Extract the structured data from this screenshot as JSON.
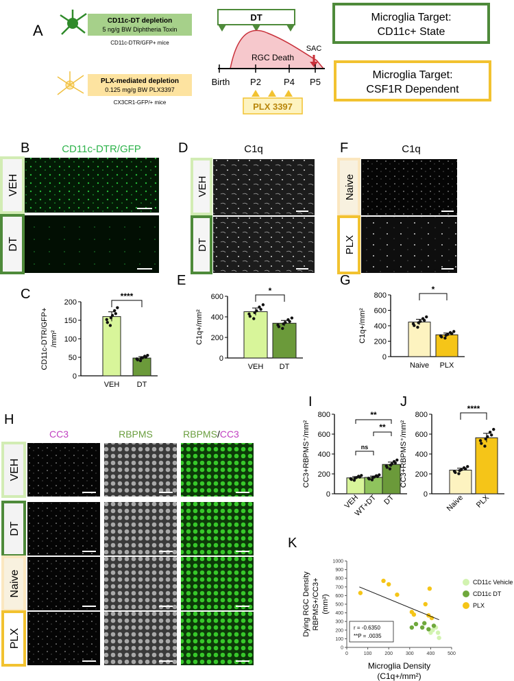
{
  "panels": {
    "A": "A",
    "B": "B",
    "C": "C",
    "D": "D",
    "E": "E",
    "F": "F",
    "G": "G",
    "H": "H",
    "I": "I",
    "J": "J",
    "K": "K"
  },
  "colors": {
    "light_green": "#d2ecb4",
    "mid_green": "#8fc35d",
    "dark_green": "#5a8a3a",
    "bar_light": "#d8f59a",
    "bar_dark": "#6b9a3a",
    "yellow": "#f5c518",
    "pale_yellow": "#fdf3c0",
    "magenta": "#c040c0",
    "label_green": "#2db34a",
    "rgc_fill": "#f6c8cc",
    "rgc_line": "#c8303a"
  },
  "panel_a": {
    "dt_box_title": "CD11c-DT depletion",
    "dt_box_sub": "5 ng/g BW Diphtheria Toxin",
    "dt_mice": "CD11c-DTR/GFP+ mice",
    "plx_box_title": "PLX-mediated depletion",
    "plx_box_sub": "0.125 mg/g BW PLX3397",
    "plx_mice": "CX3CR1-GFP/+ mice",
    "dt_label": "DT",
    "rgc_label": "RGC Death",
    "sac_label": "SAC",
    "timepoints": [
      "Birth",
      "P2",
      "P4",
      "P5"
    ],
    "plx_label": "PLX 3397",
    "target1_line1": "Microglia Target:",
    "target1_line2": "CD11c+ State",
    "target2_line1": "Microglia Target:",
    "target2_line2": "CSF1R Dependent"
  },
  "panel_b": {
    "title": "CD11c-DTR/GFP",
    "rows": [
      "VEH",
      "DT"
    ]
  },
  "panel_d": {
    "title": "C1q",
    "rows": [
      "VEH",
      "DT"
    ]
  },
  "panel_f": {
    "title": "C1q",
    "rows": [
      "Naive",
      "PLX"
    ]
  },
  "panel_h": {
    "col1": "CC3",
    "col2": "RBPMS",
    "col3a": "RBPMS",
    "col3b": "/",
    "col3c": "CC3",
    "rows": [
      "VEH",
      "DT",
      "Naive",
      "PLX"
    ]
  },
  "chart_data": [
    {
      "id": "C",
      "type": "bar",
      "categories": [
        "VEH",
        "DT"
      ],
      "values": [
        160,
        48
      ],
      "ylabel_line1": "CD11c-DTR/GFP+",
      "ylabel_line2": "/mm²",
      "ylim": [
        0,
        200
      ],
      "yticks": [
        "0",
        "50",
        "100",
        "150",
        "200"
      ],
      "significance": "****"
    },
    {
      "id": "E",
      "type": "bar",
      "categories": [
        "VEH",
        "DT"
      ],
      "values": [
        450,
        338
      ],
      "ylabel": "C1q+/mm²",
      "ylim": [
        0,
        600
      ],
      "yticks": [
        "0",
        "200",
        "400",
        "600"
      ],
      "significance": "*"
    },
    {
      "id": "G",
      "type": "bar",
      "categories": [
        "Naive",
        "PLX"
      ],
      "values": [
        448,
        283
      ],
      "ylabel": "C1q+/mm²",
      "ylim": [
        0,
        800
      ],
      "yticks": [
        "0",
        "200",
        "400",
        "600",
        "800"
      ],
      "significance": "*"
    },
    {
      "id": "I",
      "type": "bar",
      "categories": [
        "VEH",
        "WT+DT",
        "DT"
      ],
      "values": [
        160,
        165,
        295
      ],
      "ylabel": "CC3+RBPMS⁺/mm²",
      "ylim": [
        0,
        800
      ],
      "yticks": [
        "0",
        "200",
        "400",
        "600",
        "800"
      ],
      "significance": [
        {
          "pair": "VEH-WT+DT",
          "label": "ns"
        },
        {
          "pair": "WT+DT-DT",
          "label": "**"
        },
        {
          "pair": "VEH-DT",
          "label": "**"
        }
      ]
    },
    {
      "id": "J",
      "type": "bar",
      "categories": [
        "Naive",
        "PLX"
      ],
      "values": [
        238,
        563
      ],
      "ylabel": "CC3+RBPMS⁺/mm²",
      "ylim": [
        0,
        800
      ],
      "yticks": [
        "0",
        "200",
        "400",
        "600",
        "800"
      ],
      "significance": "****"
    },
    {
      "id": "K",
      "type": "scatter",
      "xlabel_line1": "Microglia Density",
      "xlabel_line2": "(C1q+/mm²)",
      "ylabel_line1": "Dying RGC Density",
      "ylabel_line2": "RBPMS+/CC3+",
      "ylabel_line3": "(mm²)",
      "xlim": [
        0,
        500
      ],
      "ylim": [
        0,
        1000
      ],
      "xticks": [
        "0",
        "100",
        "200",
        "300",
        "400",
        "500"
      ],
      "yticks": [
        "0",
        "100",
        "200",
        "300",
        "400",
        "500",
        "600",
        "700",
        "800",
        "900",
        "1000"
      ],
      "stat_r": "r = -0.6350",
      "stat_p": "**P = .0035",
      "legend": [
        "CD11c Vehicle",
        "CD11c DT",
        "PLX"
      ],
      "series": [
        {
          "name": "CD11c Vehicle",
          "points": [
            [
              425,
              230
            ],
            [
              410,
              200
            ],
            [
              435,
              170
            ],
            [
              440,
              110
            ],
            [
              400,
              170
            ]
          ]
        },
        {
          "name": "CD11c DT",
          "points": [
            [
              310,
              230
            ],
            [
              330,
              270
            ],
            [
              360,
              230
            ],
            [
              370,
              280
            ],
            [
              390,
              210
            ],
            [
              415,
              250
            ]
          ]
        },
        {
          "name": "PLX",
          "points": [
            [
              65,
              630
            ],
            [
              175,
              770
            ],
            [
              200,
              730
            ],
            [
              240,
              610
            ],
            [
              310,
              410
            ],
            [
              320,
              380
            ],
            [
              375,
              500
            ],
            [
              390,
              370
            ],
            [
              395,
              680
            ],
            [
              405,
              340
            ]
          ]
        }
      ],
      "fit": [
        [
          60,
          700
        ],
        [
          440,
          320
        ]
      ]
    }
  ]
}
